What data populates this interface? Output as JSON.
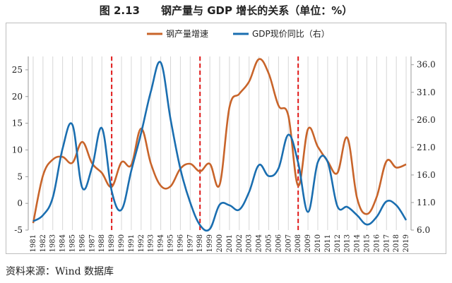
{
  "figure": {
    "title": "图 2.13　　钢产量与 GDP 增长的关系（单位：%）",
    "source": "资料来源：Wind 数据库"
  },
  "chart_data": {
    "type": "line",
    "x": [
      1981,
      1982,
      1983,
      1984,
      1985,
      1986,
      1987,
      1988,
      1989,
      1990,
      1991,
      1992,
      1993,
      1994,
      1995,
      1996,
      1997,
      1998,
      1999,
      2000,
      2001,
      2002,
      2003,
      2004,
      2005,
      2006,
      2007,
      2008,
      2009,
      2010,
      2011,
      2012,
      2013,
      2014,
      2015,
      2016,
      2017,
      2018,
      2019
    ],
    "x_tick_labels": [
      "1981",
      "1982",
      "1983",
      "1984",
      "1985",
      "1986",
      "1987",
      "1988",
      "1989",
      "1990",
      "1991",
      "1992",
      "1993",
      "1994",
      "1995",
      "1996",
      "1997",
      "1998",
      "1999",
      "2000",
      "2001",
      "2002",
      "2003",
      "2004",
      "2005",
      "2006",
      "2007",
      "2008",
      "2009",
      "2010",
      "2011",
      "2012",
      "2013",
      "2014",
      "2015",
      "2016",
      "2017",
      "2018",
      "2019"
    ],
    "y_left": {
      "lim": [
        -5,
        27.5
      ],
      "ticks": [
        -5,
        0,
        5,
        10,
        15,
        20,
        25
      ]
    },
    "y_right": {
      "lim": [
        6.0,
        37.5
      ],
      "ticks": [
        "6.0",
        "11.0",
        "16.0",
        "21.0",
        "26.0",
        "31.0",
        "36.0"
      ]
    },
    "grid": {
      "vertical": true,
      "horizontal": false
    },
    "legend": {
      "placement": "top-center"
    },
    "series": [
      {
        "name": "钢产量增速",
        "axis": "left",
        "color": "#c8642a",
        "values": [
          -3.7,
          5.2,
          8.2,
          8.7,
          7.6,
          11.5,
          7.5,
          5.7,
          3.1,
          7.7,
          7.2,
          14.0,
          7.4,
          3.3,
          3.2,
          6.5,
          7.4,
          6.0,
          7.4,
          3.5,
          18.0,
          20.5,
          22.8,
          27.0,
          24.3,
          18.3,
          16.4,
          3.3,
          13.9,
          10.6,
          7.9,
          5.7,
          12.3,
          1.0,
          -2.0,
          1.2,
          7.9,
          6.7,
          7.3
        ]
      },
      {
        "name": "GDP现价同比（右）",
        "axis": "right",
        "color": "#1a6eb0",
        "values": [
          7.6,
          8.7,
          11.9,
          20.8,
          25.1,
          13.7,
          17.4,
          24.5,
          13.1,
          9.7,
          16.8,
          23.6,
          31.2,
          36.4,
          26.1,
          17.1,
          11.0,
          6.9,
          6.2,
          10.6,
          10.5,
          9.7,
          12.9,
          17.8,
          15.8,
          17.2,
          23.3,
          18.2,
          9.3,
          18.3,
          18.4,
          10.3,
          10.2,
          8.7,
          7.0,
          8.4,
          11.2,
          10.5,
          7.8
        ]
      }
    ],
    "reference_lines": [
      1989,
      1998,
      2008
    ]
  }
}
